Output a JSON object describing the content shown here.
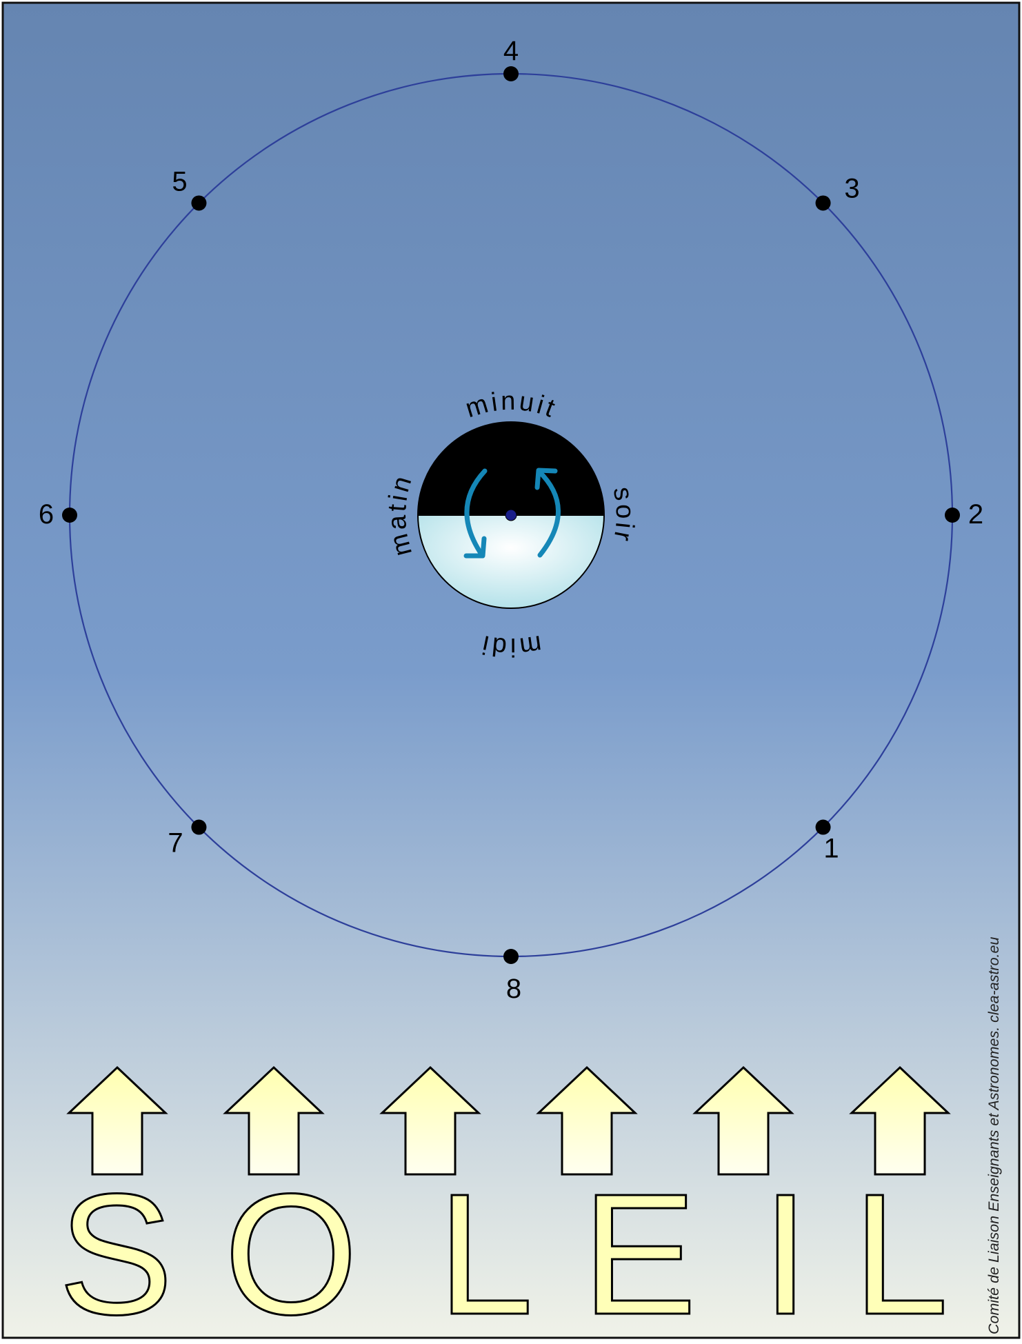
{
  "diagram": {
    "colors": {
      "sky_top": "#6585b1",
      "sky_mid": "#7a9ccb",
      "sky_bottom": "#f0f2e8",
      "orbit": "#2d3f9a",
      "position_dot": "#000000",
      "earth_night": "#000000",
      "earth_day_center": "#ffffff",
      "earth_day_edge": "#a8dde6",
      "rotation_arrow": "#1587b7",
      "sun_arrow_fill": "#ffffc8",
      "sun_letter_fill": "#ffffb8",
      "outline": "#000000"
    },
    "orbit_positions": [
      {
        "label": "1",
        "angle_deg": 45
      },
      {
        "label": "2",
        "angle_deg": 0
      },
      {
        "label": "3",
        "angle_deg": -45
      },
      {
        "label": "4",
        "angle_deg": -90
      },
      {
        "label": "5",
        "angle_deg": -135
      },
      {
        "label": "6",
        "angle_deg": 180
      },
      {
        "label": "7",
        "angle_deg": 135
      },
      {
        "label": "8",
        "angle_deg": 90
      }
    ],
    "earth": {
      "labels": {
        "minuit": "minuit",
        "midi": "midi",
        "matin": "matin",
        "soir": "soir"
      }
    },
    "sun_arrows": {
      "count": 6,
      "icon": "arrow-up-icon"
    },
    "sun_title_letters": [
      "S",
      "O",
      "L",
      "E",
      "I",
      "L"
    ],
    "credit": "Comité de Liaison Enseignants et Astronomes. clea-astro.eu"
  }
}
